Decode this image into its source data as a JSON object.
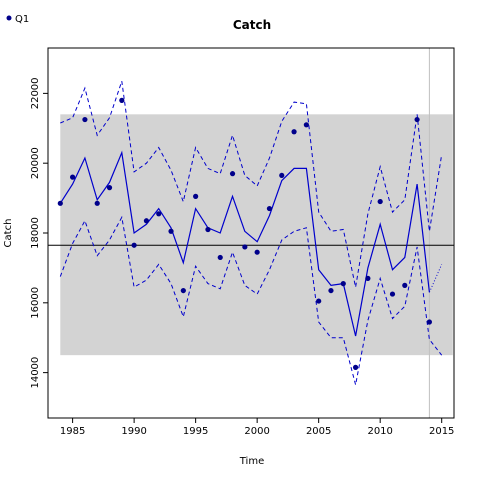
{
  "chart_data": {
    "type": "line",
    "title": "Catch",
    "xlabel": "Time",
    "ylabel": "Catch",
    "xlim": [
      1983,
      2016
    ],
    "ylim": [
      12700,
      23300
    ],
    "xticks": [
      1985,
      1990,
      1995,
      2000,
      2005,
      2010,
      2015
    ],
    "yticks": [
      14000,
      16000,
      18000,
      20000,
      22000
    ],
    "reference_line": 17650,
    "reference_band": {
      "x": [
        1984,
        2015.9
      ],
      "y": [
        14500,
        21400
      ]
    },
    "marker_year": 2014,
    "legend": {
      "position": "top-left",
      "entries": [
        {
          "label": "Q1",
          "color": "#00008b"
        }
      ]
    },
    "colors": {
      "fit": "#0000cc",
      "points": "#00008b",
      "band": "#d3d3d3",
      "reference": "#000000",
      "marker": "#c0c0c0"
    },
    "observed": {
      "name": "Q1",
      "x": [
        1984,
        1985,
        1986,
        1987,
        1988,
        1989,
        1990,
        1991,
        1992,
        1993,
        1994,
        1995,
        1996,
        1997,
        1998,
        1999,
        2000,
        2001,
        2002,
        2003,
        2004,
        2005,
        2006,
        2007,
        2008,
        2009,
        2010,
        2011,
        2012,
        2013,
        2014
      ],
      "y": [
        18850,
        19600,
        21250,
        18850,
        19300,
        21800,
        17650,
        18350,
        18550,
        18050,
        16350,
        19050,
        18100,
        17300,
        19700,
        17600,
        17450,
        18700,
        19650,
        20900,
        21100,
        16050,
        16350,
        16550,
        14150,
        16700,
        18900,
        16250,
        16500,
        21250,
        15450
      ]
    },
    "fit": {
      "x": [
        1984,
        1985,
        1986,
        1987,
        1988,
        1989,
        1990,
        1991,
        1992,
        1993,
        1994,
        1995,
        1996,
        1997,
        1998,
        1999,
        2000,
        2001,
        2002,
        2003,
        2004,
        2005,
        2006,
        2007,
        2008,
        2009,
        2010,
        2011,
        2012,
        2013,
        2014
      ],
      "y": [
        18850,
        19400,
        20150,
        18950,
        19450,
        20300,
        18000,
        18250,
        18700,
        18150,
        17150,
        18700,
        18150,
        18000,
        19050,
        18050,
        17750,
        18500,
        19500,
        19850,
        19850,
        16950,
        16500,
        16550,
        15050,
        17000,
        18250,
        16950,
        17300,
        19400,
        16300
      ]
    },
    "upper": {
      "x": [
        1984,
        1985,
        1986,
        1987,
        1988,
        1989,
        1990,
        1991,
        1992,
        1993,
        1994,
        1995,
        1996,
        1997,
        1998,
        1999,
        2000,
        2001,
        2002,
        2003,
        2004,
        2005,
        2006,
        2007,
        2008,
        2009,
        2010,
        2011,
        2012,
        2013,
        2014,
        2015
      ],
      "y": [
        21150,
        21300,
        22150,
        20800,
        21300,
        22350,
        19750,
        20000,
        20450,
        19800,
        18900,
        20450,
        19850,
        19700,
        20800,
        19650,
        19350,
        20150,
        21200,
        21750,
        21700,
        18600,
        18050,
        18100,
        16450,
        18550,
        19900,
        18600,
        18950,
        21400,
        18050,
        20250
      ]
    },
    "lower": {
      "x": [
        1984,
        1985,
        1986,
        1987,
        1988,
        1989,
        1990,
        1991,
        1992,
        1993,
        1994,
        1995,
        1996,
        1997,
        1998,
        1999,
        2000,
        2001,
        2002,
        2003,
        2004,
        2005,
        2006,
        2007,
        2008,
        2009,
        2010,
        2011,
        2012,
        2013,
        2014,
        2015
      ],
      "y": [
        16750,
        17700,
        18350,
        17350,
        17800,
        18450,
        16450,
        16650,
        17100,
        16550,
        15600,
        17050,
        16550,
        16400,
        17450,
        16500,
        16250,
        16950,
        17800,
        18050,
        18150,
        15450,
        15000,
        15000,
        13650,
        15500,
        16700,
        15550,
        15900,
        17600,
        14950,
        14500
      ]
    },
    "forecast": {
      "x": [
        2014,
        2015
      ],
      "y": [
        16300,
        17100
      ]
    }
  }
}
